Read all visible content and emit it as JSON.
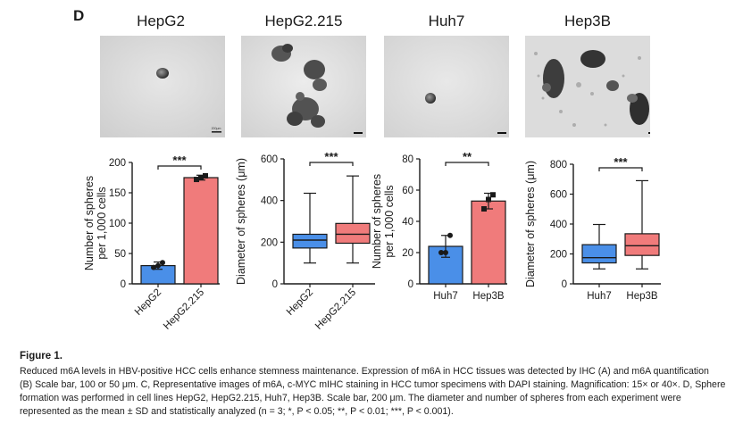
{
  "panel_label": "D",
  "cell_lines": [
    "HepG2",
    "HepG2.215",
    "Huh7",
    "Hep3B"
  ],
  "micrograph_scale_text": "200μm",
  "figure_title": "Figure 1.",
  "caption": {
    "line1": "Reduced m6A levels in HBV-positive HCC cells enhance stemness maintenance. Expression of m6A in HCC tissues was detected by IHC (A) and m6A quantification",
    "line2": "(B) Scale bar, 100 or 50 μm. C, Representative images of m6A, c-MYC mIHC staining in HCC tumor specimens with DAPI staining. Magnification: 15× or 40×. D, Sphere",
    "line3": "formation was performed in cell lines HepG2, HepG2.215, Huh7, Hep3B. Scale bar, 200 μm. The diameter and number of spheres from each experiment were",
    "line4": "represented as the mean ± SD and statistically analyzed (n = 3; *, P < 0.05; **, P < 0.01; ***, P < 0.001)."
  },
  "colors": {
    "blue": "#4a8fe8",
    "red": "#f07b7b",
    "axis": "#1a1a1a"
  },
  "chart_data": [
    {
      "type": "bar",
      "ylabel": "Number of spheres per 1,000 cells",
      "categories": [
        "HepG2",
        "HepG2.215"
      ],
      "values": [
        30,
        175
      ],
      "errors": [
        6,
        4
      ],
      "points": [
        [
          27,
          30,
          35
        ],
        [
          172,
          175,
          178
        ]
      ],
      "ylim": [
        0,
        200
      ],
      "yticks": [
        0,
        50,
        100,
        150,
        200
      ],
      "significance": "***"
    },
    {
      "type": "box",
      "ylabel": "Diameter of spheres (μm)",
      "categories": [
        "HepG2",
        "HepG2.215"
      ],
      "boxes": [
        {
          "min": 100,
          "q1": 172,
          "median": 210,
          "q3": 238,
          "max": 435
        },
        {
          "min": 100,
          "q1": 195,
          "median": 238,
          "q3": 290,
          "max": 518
        }
      ],
      "ylim": [
        0,
        600
      ],
      "yticks": [
        0,
        200,
        400,
        600
      ],
      "significance": "***"
    },
    {
      "type": "bar",
      "ylabel": "Number of spheres per 1,000 cells",
      "categories": [
        "Huh7",
        "Hep3B"
      ],
      "values": [
        24,
        53
      ],
      "errors": [
        7,
        5
      ],
      "points": [
        [
          20,
          20,
          31
        ],
        [
          48,
          54,
          57
        ]
      ],
      "ylim": [
        0,
        80
      ],
      "yticks": [
        0,
        20,
        40,
        60,
        80
      ],
      "significance": "**"
    },
    {
      "type": "box",
      "ylabel": "Diameter of spheres (μm)",
      "categories": [
        "Huh7",
        "Hep3B"
      ],
      "boxes": [
        {
          "min": 100,
          "q1": 140,
          "median": 175,
          "q3": 262,
          "max": 397
        },
        {
          "min": 100,
          "q1": 190,
          "median": 255,
          "q3": 335,
          "max": 690
        }
      ],
      "ylim": [
        0,
        800
      ],
      "yticks": [
        0,
        200,
        400,
        600,
        800
      ],
      "significance": "***"
    }
  ]
}
